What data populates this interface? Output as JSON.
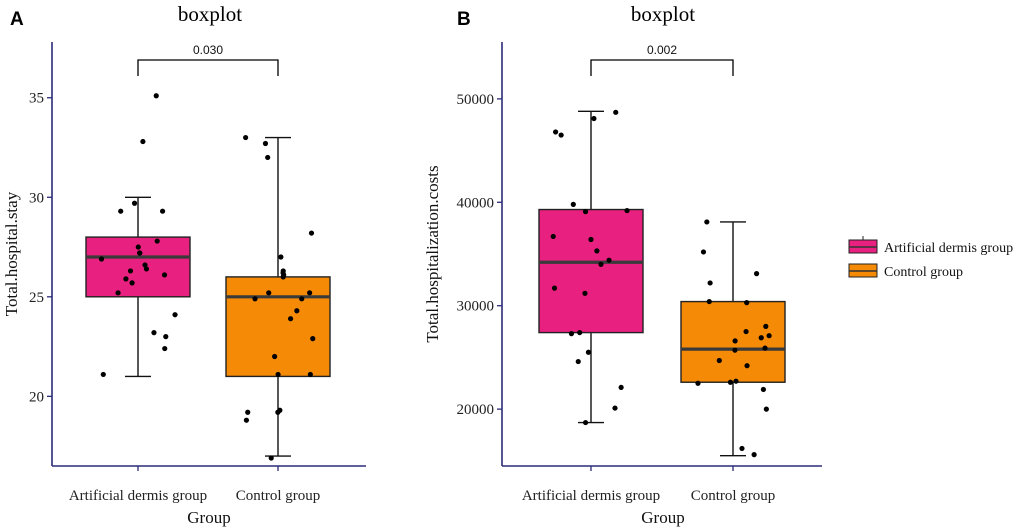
{
  "chart_data": [
    {
      "type": "box",
      "panel_label": "A",
      "title": "boxplot",
      "xlabel": "Group",
      "ylabel": "Total.hospital.stay",
      "categories": [
        "Artificial dermis group",
        "Control group"
      ],
      "ylim": [
        16.5,
        37.8
      ],
      "yticks": [
        20,
        25,
        30,
        35
      ],
      "boxes": [
        {
          "name": "Artificial dermis group",
          "min": 21,
          "q1": 25,
          "median": 27,
          "q3": 28,
          "max": 30,
          "color": "#e8207f"
        },
        {
          "name": "Control group",
          "min": 17,
          "q1": 21,
          "median": 25,
          "q3": 26,
          "max": 33,
          "color": "#f58a07"
        }
      ],
      "points": [
        [
          35.1,
          32.8,
          29.7,
          29.3,
          29.3,
          27.8,
          27.5,
          27.2,
          27.2,
          26.9,
          26.6,
          26.4,
          26.3,
          26.1,
          25.9,
          25.7,
          25.2,
          24.1,
          23.2,
          23.0,
          22.4,
          21.1
        ],
        [
          33.0,
          32.0,
          32.7,
          28.2,
          27.0,
          26.3,
          26.2,
          26.1,
          26.0,
          25.2,
          25.2,
          24.9,
          24.9,
          24.3,
          23.9,
          22.9,
          22.0,
          21.1,
          21.1,
          19.3,
          19.2,
          19.2,
          18.8,
          16.9
        ]
      ],
      "significance": {
        "pairs": [
          "Artificial dermis group",
          "Control group"
        ],
        "label": "0.030"
      }
    },
    {
      "type": "box",
      "panel_label": "B",
      "title": "boxplot",
      "xlabel": "Group",
      "ylabel": "Total.hospitalization.costs",
      "categories": [
        "Artificial dermis group",
        "Control group"
      ],
      "ylim": [
        14500,
        55500
      ],
      "yticks": [
        20000,
        30000,
        40000,
        50000
      ],
      "boxes": [
        {
          "name": "Artificial dermis group",
          "min": 18700,
          "q1": 27400,
          "median": 34200,
          "q3": 39300,
          "max": 48800,
          "color": "#e8207f"
        },
        {
          "name": "Control group",
          "min": 15500,
          "q1": 22600,
          "median": 25800,
          "q3": 30400,
          "max": 38100,
          "color": "#f58a07"
        }
      ],
      "points": [
        [
          48700,
          48100,
          46800,
          46500,
          39800,
          39200,
          39100,
          36700,
          36400,
          35300,
          34400,
          34000,
          31700,
          31200,
          27400,
          27300,
          25500,
          24600,
          22100,
          20100,
          18700
        ],
        [
          38100,
          35200,
          33100,
          32200,
          30400,
          30300,
          28000,
          27500,
          27100,
          26900,
          26600,
          25900,
          25700,
          24700,
          24200,
          22700,
          22600,
          22500,
          21900,
          20000,
          16200,
          15600
        ]
      ],
      "significance": {
        "pairs": [
          "Artificial dermis group",
          "Control group"
        ],
        "label": "0.002"
      }
    }
  ],
  "legend": {
    "items": [
      {
        "label": "Artificial dermis group",
        "color": "#e8207f"
      },
      {
        "label": "Control group",
        "color": "#f58a07"
      }
    ]
  }
}
